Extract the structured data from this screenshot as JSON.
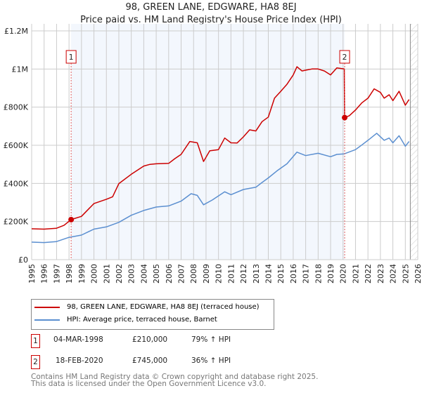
{
  "chart_data": {
    "type": "line",
    "title": "98, GREEN LANE, EDGWARE, HA8 8EJ",
    "subtitle": "Price paid vs. HM Land Registry's House Price Index (HPI)",
    "xlabel": "",
    "ylabel": "",
    "xlim": [
      1995,
      2026
    ],
    "ylim": [
      0,
      1200000
    ],
    "x_ticks": [
      "1995",
      "1996",
      "1997",
      "1998",
      "1999",
      "2000",
      "2001",
      "2002",
      "2003",
      "2004",
      "2005",
      "2006",
      "2007",
      "2008",
      "2009",
      "2010",
      "2011",
      "2012",
      "2013",
      "2014",
      "2015",
      "2016",
      "2017",
      "2018",
      "2019",
      "2020",
      "2021",
      "2022",
      "2023",
      "2024",
      "2025",
      "2026"
    ],
    "y_ticks": [
      {
        "value": 0,
        "label": "£0"
      },
      {
        "value": 200000,
        "label": "£200K"
      },
      {
        "value": 400000,
        "label": "£400K"
      },
      {
        "value": 600000,
        "label": "£600K"
      },
      {
        "value": 800000,
        "label": "£800K"
      },
      {
        "value": 1000000,
        "label": "£1M"
      },
      {
        "value": 1200000,
        "label": "£1.2M"
      }
    ],
    "grid": true,
    "shaded_period": [
      1998.17,
      2020.13
    ],
    "forecast_hatch_from": 2025.4,
    "series": [
      {
        "name": "98, GREEN LANE, EDGWARE, HA8 8EJ (terraced house)",
        "color": "#cc0000",
        "x": [
          1995,
          1996,
          1997,
          1997.6,
          1998.17,
          1999,
          2000,
          2001,
          2001.5,
          2002,
          2003,
          2004,
          2004.5,
          2005,
          2006,
          2006.5,
          2007,
          2007.7,
          2008.3,
          2008.8,
          2009.3,
          2010,
          2010.5,
          2011,
          2011.5,
          2012,
          2012.5,
          2013,
          2013.5,
          2014,
          2014.5,
          2015,
          2015.5,
          2016,
          2016.3,
          2016.7,
          2017,
          2017.5,
          2018,
          2018.5,
          2019,
          2019.5,
          2020.1,
          2020.13,
          2020.5,
          2021,
          2021.5,
          2022,
          2022.5,
          2023,
          2023.3,
          2023.7,
          2024,
          2024.5,
          2025,
          2025.3
        ],
        "y": [
          162000,
          160000,
          165000,
          180000,
          210000,
          227000,
          294000,
          317000,
          330000,
          399000,
          448000,
          491000,
          500000,
          503000,
          505000,
          530000,
          552000,
          620000,
          613000,
          515000,
          571000,
          577000,
          638000,
          613000,
          612000,
          644000,
          681000,
          675000,
          724000,
          748000,
          847000,
          883000,
          920000,
          969000,
          1012000,
          990000,
          994000,
          1000000,
          1000000,
          990000,
          969000,
          1006000,
          1000000,
          745000,
          755000,
          785000,
          822000,
          847000,
          896000,
          877000,
          847000,
          865000,
          834000,
          883000,
          810000,
          840000
        ]
      },
      {
        "name": "HPI: Average price, terraced house, Barnet",
        "color": "#5b8fd0",
        "x": [
          1995,
          1996,
          1997,
          1998,
          1999,
          2000,
          2001,
          2002,
          2003,
          2004,
          2005,
          2006,
          2007,
          2007.8,
          2008.3,
          2008.8,
          2009.5,
          2010.5,
          2011,
          2012,
          2013,
          2013.5,
          2014,
          2014.7,
          2015.5,
          2016.3,
          2017,
          2018,
          2019,
          2019.5,
          2020.1,
          2021,
          2021.5,
          2022,
          2022.7,
          2023.3,
          2023.7,
          2024,
          2024.5,
          2025,
          2025.3
        ],
        "y": [
          92000,
          90000,
          95000,
          117000,
          129000,
          160000,
          172000,
          196000,
          233000,
          258000,
          276000,
          282000,
          307000,
          346000,
          337000,
          288000,
          313000,
          356000,
          341000,
          368000,
          380000,
          405000,
          429000,
          466000,
          503000,
          564000,
          546000,
          558000,
          540000,
          552000,
          555000,
          577000,
          601000,
          626000,
          663000,
          626000,
          638000,
          613000,
          650000,
          595000,
          620000
        ]
      }
    ],
    "annotations": [
      {
        "label": "1",
        "x": 1998.17,
        "y": 210000
      },
      {
        "label": "2",
        "x": 2020.13,
        "y": 745000
      }
    ]
  },
  "legend": {
    "entries": [
      "98, GREEN LANE, EDGWARE, HA8 8EJ (terraced house)",
      "HPI: Average price, terraced house, Barnet"
    ]
  },
  "sales": [
    {
      "num": "1",
      "date": "04-MAR-1998",
      "price": "£210,000",
      "hpi": "79% ↑ HPI"
    },
    {
      "num": "2",
      "date": "18-FEB-2020",
      "price": "£745,000",
      "hpi": "36% ↑ HPI"
    }
  ],
  "footer": {
    "line1": "Contains HM Land Registry data © Crown copyright and database right 2025.",
    "line2": "This data is licensed under the Open Government Licence v3.0."
  }
}
